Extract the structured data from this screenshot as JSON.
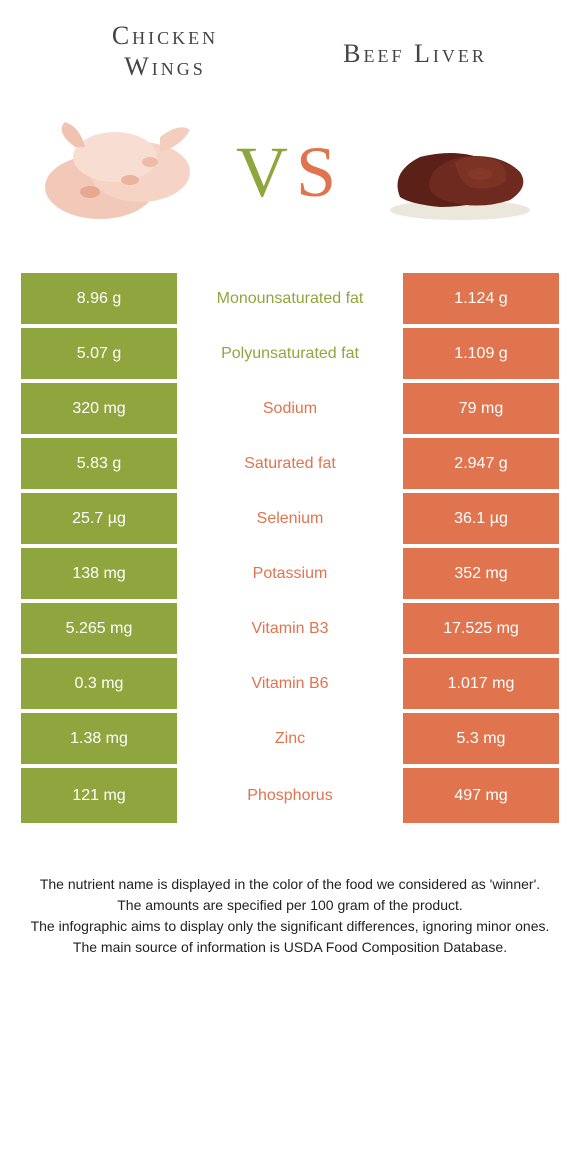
{
  "colors": {
    "left": "#8FA63E",
    "right": "#E0744F",
    "background": "#ffffff",
    "text": "#333333"
  },
  "header": {
    "left_title_line1": "Chicken",
    "left_title_line2": "Wings",
    "right_title": "Beef Liver"
  },
  "vs": {
    "v": "V",
    "s": "S"
  },
  "rows": [
    {
      "left": "8.96 g",
      "label": "Monounsaturated fat",
      "right": "1.124 g",
      "winner": "left"
    },
    {
      "left": "5.07 g",
      "label": "Polyunsaturated fat",
      "right": "1.109 g",
      "winner": "left"
    },
    {
      "left": "320 mg",
      "label": "Sodium",
      "right": "79 mg",
      "winner": "right"
    },
    {
      "left": "5.83 g",
      "label": "Saturated fat",
      "right": "2.947 g",
      "winner": "right"
    },
    {
      "left": "25.7 µg",
      "label": "Selenium",
      "right": "36.1 µg",
      "winner": "right"
    },
    {
      "left": "138 mg",
      "label": "Potassium",
      "right": "352 mg",
      "winner": "right"
    },
    {
      "left": "5.265 mg",
      "label": "Vitamin B3",
      "right": "17.525 mg",
      "winner": "right"
    },
    {
      "left": "0.3 mg",
      "label": "Vitamin B6",
      "right": "1.017 mg",
      "winner": "right"
    },
    {
      "left": "1.38 mg",
      "label": "Zinc",
      "right": "5.3 mg",
      "winner": "right"
    },
    {
      "left": "121 mg",
      "label": "Phosphorus",
      "right": "497 mg",
      "winner": "right"
    }
  ],
  "footnote": {
    "line1": "The nutrient name is displayed in the color of the food we considered as 'winner'.",
    "line2": "The amounts are specified per 100 gram of the product.",
    "line3": "The infographic aims to display only the significant differences, ignoring minor ones.",
    "line4": "The main source of information is USDA Food Composition Database."
  }
}
